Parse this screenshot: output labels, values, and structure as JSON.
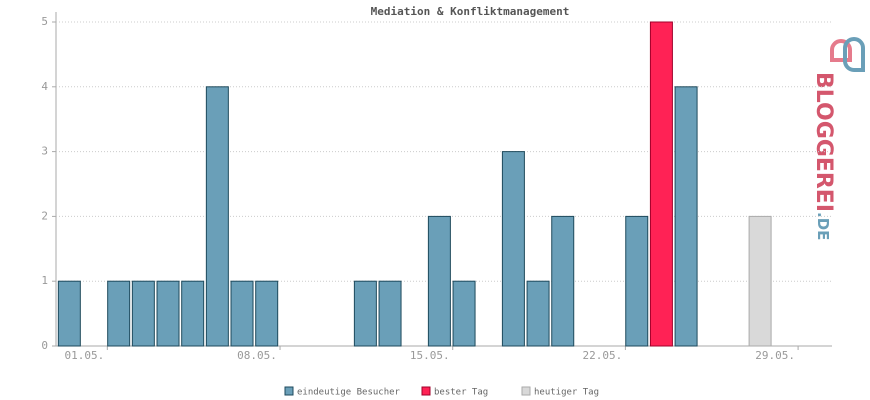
{
  "chart_data": {
    "type": "bar",
    "title": "Mediation & Konfliktmanagement",
    "categories": [
      "01.05.",
      null,
      null,
      null,
      null,
      null,
      null,
      "08.05.",
      null,
      null,
      null,
      null,
      null,
      null,
      "15.05.",
      null,
      null,
      null,
      null,
      null,
      null,
      "22.05.",
      null,
      null,
      null,
      null,
      null,
      null,
      "29.05.",
      null,
      null
    ],
    "series": [
      {
        "name": "eindeutige Besucher",
        "color": "#6a9fb8",
        "values": [
          1,
          0,
          1,
          1,
          1,
          1,
          4,
          1,
          1,
          0,
          0,
          0,
          1,
          1,
          0,
          2,
          1,
          0,
          3,
          1,
          2,
          0,
          0,
          2,
          null,
          4,
          0,
          0,
          null,
          0,
          0
        ]
      },
      {
        "name": "bester Tag",
        "color": "#ff2255",
        "values": [
          null,
          null,
          null,
          null,
          null,
          null,
          null,
          null,
          null,
          null,
          null,
          null,
          null,
          null,
          null,
          null,
          null,
          null,
          null,
          null,
          null,
          null,
          null,
          null,
          5,
          null,
          null,
          null,
          null,
          null,
          null
        ]
      },
      {
        "name": "heutiger Tag",
        "color": "#d9d9d9",
        "values": [
          null,
          null,
          null,
          null,
          null,
          null,
          null,
          null,
          null,
          null,
          null,
          null,
          null,
          null,
          null,
          null,
          null,
          null,
          null,
          null,
          null,
          null,
          null,
          null,
          null,
          null,
          null,
          null,
          2,
          null,
          null
        ]
      }
    ],
    "ylim": [
      0,
      5
    ],
    "yticks": [
      0,
      1,
      2,
      3,
      4,
      5
    ],
    "grid": true,
    "logo": {
      "name": "BLOGGEREI",
      "tld": ".DE"
    }
  }
}
